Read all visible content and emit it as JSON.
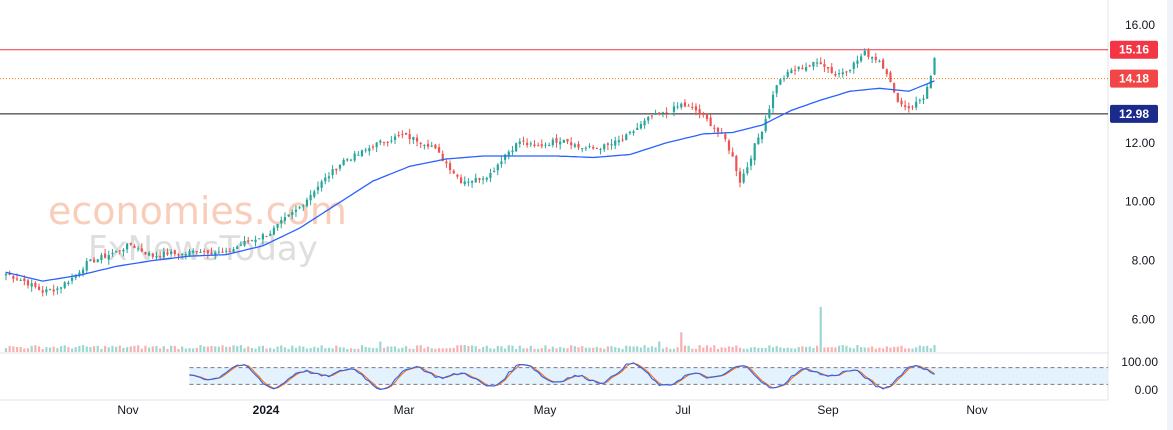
{
  "colors": {
    "up": "#26a69a",
    "down": "#ef5350",
    "ma": "#2962ff",
    "resistance": "#f23645",
    "current": "#f57c00",
    "support": "#131722",
    "stoch_k": "#2962ff",
    "stoch_d": "#ff6d00",
    "stoch_band": "#e3f2fd"
  },
  "watermark": {
    "line1": "economies.com",
    "line2": "FxNewsToday"
  },
  "chart_data": {
    "type": "candlestick",
    "price_axis": {
      "ylim": [
        5.3,
        16.0
      ],
      "ticks": [
        "16.00",
        "12.00",
        "10.00",
        "8.00",
        "6.00"
      ]
    },
    "time_axis": {
      "labels": [
        "Nov",
        "2024",
        "Mar",
        "May",
        "Jul",
        "Sep",
        "Nov"
      ]
    },
    "oscillator_axis": {
      "ticks": [
        "100.00",
        "0.00"
      ]
    },
    "levels": [
      {
        "name": "resistance",
        "value": 15.16,
        "label": "15.16"
      },
      {
        "name": "current",
        "value": 14.18,
        "label": "14.18"
      },
      {
        "name": "support",
        "value": 12.98,
        "label": "12.98"
      }
    ],
    "close_anchors": [
      [
        0,
        7.55
      ],
      [
        5,
        7.3
      ],
      [
        10,
        6.95
      ],
      [
        14,
        7.05
      ],
      [
        18,
        7.4
      ],
      [
        22,
        7.9
      ],
      [
        26,
        8.1
      ],
      [
        30,
        8.3
      ],
      [
        34,
        8.55
      ],
      [
        36,
        8.4
      ],
      [
        40,
        8.15
      ],
      [
        44,
        8.25
      ],
      [
        48,
        8.2
      ],
      [
        52,
        8.35
      ],
      [
        56,
        8.3
      ],
      [
        60,
        8.25
      ],
      [
        64,
        8.55
      ],
      [
        68,
        8.75
      ],
      [
        72,
        8.95
      ],
      [
        76,
        9.4
      ],
      [
        80,
        9.8
      ],
      [
        84,
        10.4
      ],
      [
        88,
        10.9
      ],
      [
        92,
        11.4
      ],
      [
        96,
        11.6
      ],
      [
        100,
        11.9
      ],
      [
        104,
        12.1
      ],
      [
        108,
        12.25
      ],
      [
        112,
        12.1
      ],
      [
        116,
        11.9
      ],
      [
        120,
        11.3
      ],
      [
        124,
        10.7
      ],
      [
        128,
        10.75
      ],
      [
        132,
        10.95
      ],
      [
        136,
        11.6
      ],
      [
        140,
        12.05
      ],
      [
        144,
        11.85
      ],
      [
        148,
        12.0
      ],
      [
        152,
        12.15
      ],
      [
        156,
        11.85
      ],
      [
        160,
        11.8
      ],
      [
        164,
        11.9
      ],
      [
        168,
        12.1
      ],
      [
        172,
        12.5
      ],
      [
        176,
        12.9
      ],
      [
        180,
        13.0
      ],
      [
        184,
        13.3
      ],
      [
        188,
        13.1
      ],
      [
        192,
        12.65
      ],
      [
        196,
        12.1
      ],
      [
        198,
        11.5
      ],
      [
        200,
        10.7
      ],
      [
        202,
        11.2
      ],
      [
        204,
        11.9
      ],
      [
        206,
        12.45
      ],
      [
        208,
        13.2
      ],
      [
        210,
        14.0
      ],
      [
        214,
        14.45
      ],
      [
        218,
        14.6
      ],
      [
        222,
        14.75
      ],
      [
        226,
        14.3
      ],
      [
        230,
        14.55
      ],
      [
        234,
        15.05
      ],
      [
        238,
        14.8
      ],
      [
        240,
        14.4
      ],
      [
        242,
        13.65
      ],
      [
        244,
        13.3
      ],
      [
        246,
        13.2
      ],
      [
        248,
        13.35
      ],
      [
        250,
        13.55
      ],
      [
        252,
        14.2
      ],
      [
        253,
        14.8
      ]
    ],
    "ma_anchors": [
      [
        0,
        7.6
      ],
      [
        10,
        7.3
      ],
      [
        20,
        7.5
      ],
      [
        30,
        7.8
      ],
      [
        40,
        8.0
      ],
      [
        50,
        8.15
      ],
      [
        60,
        8.2
      ],
      [
        70,
        8.5
      ],
      [
        80,
        9.1
      ],
      [
        90,
        9.9
      ],
      [
        100,
        10.7
      ],
      [
        110,
        11.2
      ],
      [
        120,
        11.45
      ],
      [
        130,
        11.55
      ],
      [
        140,
        11.55
      ],
      [
        150,
        11.55
      ],
      [
        160,
        11.5
      ],
      [
        170,
        11.6
      ],
      [
        180,
        12.0
      ],
      [
        190,
        12.3
      ],
      [
        198,
        12.35
      ],
      [
        206,
        12.6
      ],
      [
        214,
        13.1
      ],
      [
        222,
        13.45
      ],
      [
        230,
        13.75
      ],
      [
        238,
        13.85
      ],
      [
        246,
        13.75
      ],
      [
        253,
        14.1
      ]
    ],
    "volume_spikes": [
      {
        "index": 222,
        "relative": 8.0,
        "up": true
      },
      {
        "index": 184,
        "relative": 2.0,
        "up": false
      },
      {
        "index": 178,
        "relative": 1.5,
        "up": true
      },
      {
        "index": 102,
        "relative": 1.4,
        "up": true
      }
    ],
    "oscillator": {
      "type": "stochastic",
      "upper_band": 80,
      "lower_band": 20,
      "range": [
        0,
        100
      ],
      "start_index": 50
    }
  }
}
